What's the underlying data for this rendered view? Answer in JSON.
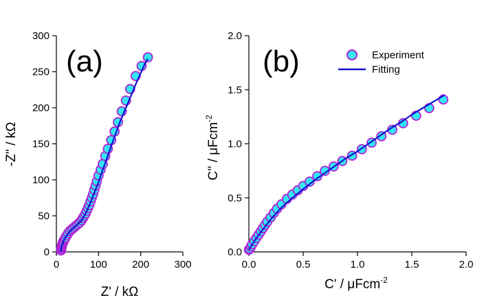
{
  "colors": {
    "marker_fill": "#33e6f0",
    "marker_edge": "#b21fd4",
    "fit_line": "#1010d0",
    "axis": "#000000"
  },
  "chart_data": [
    {
      "type": "scatter",
      "panel_label": "(a)",
      "xlabel": "Z' / kΩ",
      "ylabel": "-Z'' / kΩ",
      "xlim": [
        0,
        300
      ],
      "ylim": [
        0,
        300
      ],
      "xticks": [
        "0",
        "100",
        "200",
        "300"
      ],
      "yticks": [
        "0",
        "50",
        "100",
        "150",
        "200",
        "250",
        "300"
      ],
      "series": [
        {
          "name": "Experiment",
          "kind": "markers",
          "x": [
            11,
            11.5,
            12,
            13,
            14,
            15,
            16,
            18,
            20,
            22,
            25,
            28,
            32,
            36,
            40,
            44,
            48,
            52,
            56,
            60,
            63,
            66,
            69,
            72,
            75,
            78,
            81,
            84,
            87,
            90,
            93,
            96,
            100,
            105,
            110,
            116,
            122,
            130,
            138,
            146,
            155,
            165,
            175,
            188,
            202,
            217
          ],
          "y": [
            2,
            4,
            6,
            8,
            10,
            12,
            14,
            16,
            18,
            20,
            23,
            26,
            29,
            31,
            33,
            35,
            37,
            39,
            41,
            44,
            47,
            50,
            53,
            57,
            61,
            65,
            70,
            75,
            80,
            86,
            92,
            98,
            106,
            114,
            122,
            133,
            143,
            155,
            167,
            180,
            195,
            210,
            226,
            244,
            258,
            270
          ]
        },
        {
          "name": "Fitting",
          "kind": "line",
          "x": [
            10,
            12,
            15,
            20,
            30,
            40,
            50,
            60,
            70,
            80,
            90,
            100,
            110,
            120,
            130,
            140,
            150,
            160,
            170,
            180,
            190,
            200,
            210,
            217
          ],
          "y": [
            0,
            6,
            12,
            19,
            27,
            33,
            38,
            44,
            54,
            67,
            82,
            97,
            114,
            130,
            147,
            163,
            179,
            193,
            207,
            221,
            235,
            248,
            261,
            268
          ]
        }
      ]
    },
    {
      "type": "scatter",
      "panel_label": "(b)",
      "xlabel": "C' /  μFcm",
      "xlabel_exp": "-2",
      "ylabel": "C'' /  μFcm",
      "ylabel_exp": "-2",
      "xlim": [
        0,
        2
      ],
      "ylim": [
        0,
        2
      ],
      "xticks": [
        "0.0",
        "0.5",
        "1.0",
        "1.5",
        "2.0"
      ],
      "yticks": [
        "0.0",
        "0.5",
        "1.0",
        "1.5",
        "2.0"
      ],
      "legend": {
        "placement": "top-right",
        "entries": [
          "Experiment",
          "Fitting"
        ]
      },
      "series": [
        {
          "name": "Experiment",
          "kind": "markers",
          "x": [
            0.0,
            0.01,
            0.02,
            0.03,
            0.05,
            0.07,
            0.09,
            0.11,
            0.13,
            0.15,
            0.17,
            0.2,
            0.23,
            0.26,
            0.3,
            0.35,
            0.4,
            0.45,
            0.5,
            0.56,
            0.63,
            0.7,
            0.78,
            0.86,
            0.95,
            1.04,
            1.13,
            1.22,
            1.32,
            1.42,
            1.54,
            1.66,
            1.79
          ],
          "y": [
            0.02,
            0.03,
            0.05,
            0.07,
            0.1,
            0.13,
            0.16,
            0.19,
            0.22,
            0.25,
            0.28,
            0.32,
            0.36,
            0.4,
            0.44,
            0.49,
            0.53,
            0.57,
            0.61,
            0.65,
            0.7,
            0.75,
            0.79,
            0.84,
            0.89,
            0.95,
            1.01,
            1.07,
            1.13,
            1.19,
            1.26,
            1.33,
            1.41
          ]
        },
        {
          "name": "Fitting",
          "kind": "line",
          "x": [
            0.0,
            0.05,
            0.1,
            0.2,
            0.3,
            0.4,
            0.5,
            0.6,
            0.7,
            0.8,
            0.9,
            1.0,
            1.1,
            1.2,
            1.3,
            1.4,
            1.5,
            1.6,
            1.7,
            1.8
          ],
          "y": [
            0.02,
            0.1,
            0.17,
            0.3,
            0.41,
            0.5,
            0.58,
            0.66,
            0.73,
            0.8,
            0.87,
            0.93,
            1.0,
            1.07,
            1.14,
            1.2,
            1.27,
            1.33,
            1.39,
            1.45
          ]
        }
      ]
    }
  ]
}
